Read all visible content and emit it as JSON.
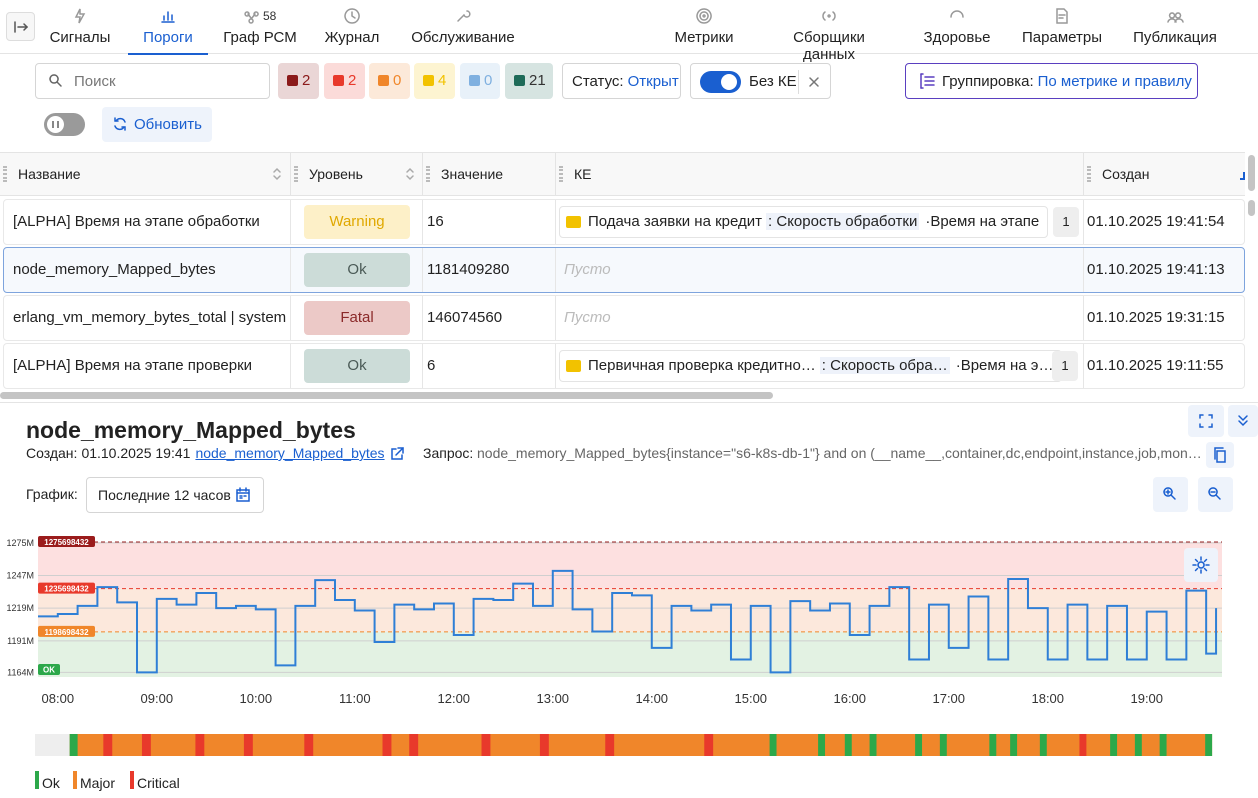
{
  "nav": {
    "tabs": [
      {
        "label": "Сигналы"
      },
      {
        "label": "Пороги"
      },
      {
        "label": "Граф РСМ",
        "badge": 58
      },
      {
        "label": "Журнал"
      },
      {
        "label": "Обслуживание"
      },
      {
        "label": "Метрики"
      },
      {
        "label": "Сборщики данных"
      },
      {
        "label": "Здоровье"
      },
      {
        "label": "Параметры"
      },
      {
        "label": "Публикация"
      }
    ],
    "active_tab": 1
  },
  "toolbar": {
    "search_placeholder": "Поиск",
    "counters": [
      {
        "value": 2,
        "color": "#8b1a1a"
      },
      {
        "value": 2,
        "color": "#e8392b"
      },
      {
        "value": 0,
        "color": "#f0862a"
      },
      {
        "value": 4,
        "color": "#f2c200"
      },
      {
        "value": 0,
        "color": "#7fb0e0"
      },
      {
        "value": 21,
        "color": "#1e6b58"
      }
    ],
    "status_label": "Статус:",
    "status_value": "Открыт",
    "toggle_label": "Без КЕ",
    "grouping_label": "Группировка:",
    "grouping_value": "По метрике и правилу",
    "refresh": "Обновить"
  },
  "table": {
    "columns": [
      "Название",
      "Уровень",
      "Значение",
      "КЕ",
      "Создан"
    ],
    "empty_text": "Пусто",
    "selected_row": 1,
    "rows": [
      {
        "name": "[ALPHA] Время на этапе обработки",
        "level": "Warning",
        "level_bg": "#fdf0c8",
        "level_fg": "#e0a800",
        "value": 16,
        "ke": {
          "item": "Подача заявки на кредит",
          "metric": ": Скорость обработки",
          "label": "·Время на этапе",
          "count": 1
        },
        "created": "01.10.2025 19:41:54"
      },
      {
        "name": "node_memory_Mapped_bytes",
        "level": "Ok",
        "level_bg": "#ccdcd8",
        "level_fg": "#4a5a56",
        "value": 1181409280,
        "ke": null,
        "created": "01.10.2025 19:41:13"
      },
      {
        "name": "erlang_vm_memory_bytes_total | system",
        "level": "Fatal",
        "level_bg": "#ecc9c7",
        "level_fg": "#8b2a2a",
        "value": 146074560,
        "ke": null,
        "created": "01.10.2025 19:31:15"
      },
      {
        "name": "[ALPHA] Время на этапе проверки",
        "level": "Ok",
        "level_bg": "#ccdcd8",
        "level_fg": "#4a5a56",
        "value": 6,
        "ke": {
          "item": "Первичная проверка кредитно…",
          "metric": ": Скорость обра…",
          "label": "·Время на э…",
          "count": 1
        },
        "created": "01.10.2025 19:11:55"
      }
    ]
  },
  "detail": {
    "title": "node_memory_Mapped_bytes",
    "created_label": "Создан:",
    "created": "01.10.2025 19:41",
    "link": "node_memory_Mapped_bytes",
    "query_label": "Запрос:",
    "query": "node_memory_Mapped_bytes{instance=\"s6-k8s-db-1\"} and on (__name__,container,dc,endpoint,instance,job,mon…",
    "graph_label": "График:",
    "period": "Последние 12 часов"
  },
  "chart_data": {
    "type": "line",
    "x": [
      7.8,
      8.0,
      8.2,
      8.4,
      8.6,
      8.8,
      9.0,
      9.2,
      9.4,
      9.6,
      9.8,
      10.0,
      10.2,
      10.4,
      10.6,
      10.8,
      11.0,
      11.2,
      11.4,
      11.6,
      11.8,
      12.0,
      12.2,
      12.4,
      12.6,
      12.8,
      13.0,
      13.2,
      13.4,
      13.6,
      13.8,
      14.0,
      14.2,
      14.4,
      14.6,
      14.8,
      15.0,
      15.2,
      15.4,
      15.6,
      15.8,
      16.0,
      16.2,
      16.4,
      16.6,
      16.8,
      17.0,
      17.2,
      17.4,
      17.6,
      17.8,
      18.0,
      18.2,
      18.4,
      18.6,
      18.8,
      19.0,
      19.2,
      19.4,
      19.6,
      19.7
    ],
    "series": [
      {
        "color": "#2f7fd6",
        "values": [
          1212000000,
          1214000000,
          1221000000,
          1237000000,
          1224000000,
          1164000000,
          1227000000,
          1222000000,
          1232000000,
          1219000000,
          1221000000,
          1218000000,
          1170000000,
          1221000000,
          1243000000,
          1226000000,
          1217000000,
          1190000000,
          1222000000,
          1218000000,
          1223000000,
          1196000000,
          1227000000,
          1226000000,
          1240000000,
          1221000000,
          1251000000,
          1218000000,
          1199000000,
          1232000000,
          1230000000,
          1185000000,
          1221000000,
          1217000000,
          1222000000,
          1175000000,
          1221000000,
          1164000000,
          1225000000,
          1217000000,
          1223000000,
          1196000000,
          1221000000,
          1237000000,
          1175000000,
          1222000000,
          1185000000,
          1229000000,
          1175000000,
          1244000000,
          1219000000,
          1175000000,
          1222000000,
          1175000000,
          1221000000,
          1175000000,
          1216000000,
          1175000000,
          1234000000,
          1180000000,
          1219000000
        ]
      }
    ],
    "xlim": [
      7.8,
      19.76
    ],
    "ylim": [
      1160000000,
      1280000000
    ],
    "xticks": [
      {
        "value": 8,
        "label": "08:00"
      },
      {
        "value": 9,
        "label": "09:00"
      },
      {
        "value": 10,
        "label": "10:00"
      },
      {
        "value": 11,
        "label": "11:00"
      },
      {
        "value": 12,
        "label": "12:00"
      },
      {
        "value": 13,
        "label": "13:00"
      },
      {
        "value": 14,
        "label": "14:00"
      },
      {
        "value": 15,
        "label": "15:00"
      },
      {
        "value": 16,
        "label": "16:00"
      },
      {
        "value": 17,
        "label": "17:00"
      },
      {
        "value": 18,
        "label": "18:00"
      },
      {
        "value": 19,
        "label": "19:00"
      }
    ],
    "yticks": [
      {
        "value": 1164000000,
        "label": "1164M"
      },
      {
        "value": 1191000000,
        "label": "1191M"
      },
      {
        "value": 1219000000,
        "label": "1219M"
      },
      {
        "value": 1247000000,
        "label": "1247M"
      },
      {
        "value": 1275000000,
        "label": "1275M"
      }
    ],
    "grid": true,
    "thresholds": [
      {
        "value": 1275698432,
        "color": "#9b1c1c",
        "fill": "#fde0e0"
      },
      {
        "value": 1235698432,
        "color": "#e8392b",
        "fill": "#fce8dc"
      },
      {
        "value": 1198698432,
        "color": "#f0862a",
        "fill": "#e3f2e3"
      }
    ],
    "ok_label": "OK",
    "ok_color": "#2ca84a",
    "status_timeline": {
      "states": [
        "Ok",
        "Major",
        "Critical"
      ],
      "colors": [
        "#2ca84a",
        "#f0862a",
        "#e8392b"
      ],
      "segments": [
        [
          8.12,
          19.66,
          1
        ],
        [
          8.12,
          8.2,
          0
        ],
        [
          8.46,
          8.55,
          2
        ],
        [
          8.85,
          8.94,
          2
        ],
        [
          9.39,
          9.48,
          2
        ],
        [
          9.88,
          9.97,
          2
        ],
        [
          10.49,
          10.58,
          2
        ],
        [
          11.28,
          11.37,
          2
        ],
        [
          11.55,
          11.64,
          2
        ],
        [
          12.28,
          12.37,
          2
        ],
        [
          12.87,
          12.96,
          2
        ],
        [
          13.53,
          13.62,
          2
        ],
        [
          14.53,
          14.62,
          2
        ],
        [
          15.19,
          15.26,
          0
        ],
        [
          15.68,
          15.75,
          0
        ],
        [
          15.95,
          16.02,
          0
        ],
        [
          16.2,
          16.27,
          0
        ],
        [
          16.66,
          16.73,
          0
        ],
        [
          16.91,
          16.98,
          0
        ],
        [
          17.41,
          17.48,
          0
        ],
        [
          17.62,
          17.69,
          0
        ],
        [
          17.92,
          17.99,
          0
        ],
        [
          18.32,
          18.39,
          2
        ],
        [
          18.63,
          18.7,
          0
        ],
        [
          18.88,
          18.95,
          0
        ],
        [
          19.13,
          19.2,
          0
        ],
        [
          19.59,
          19.66,
          0
        ]
      ]
    }
  }
}
